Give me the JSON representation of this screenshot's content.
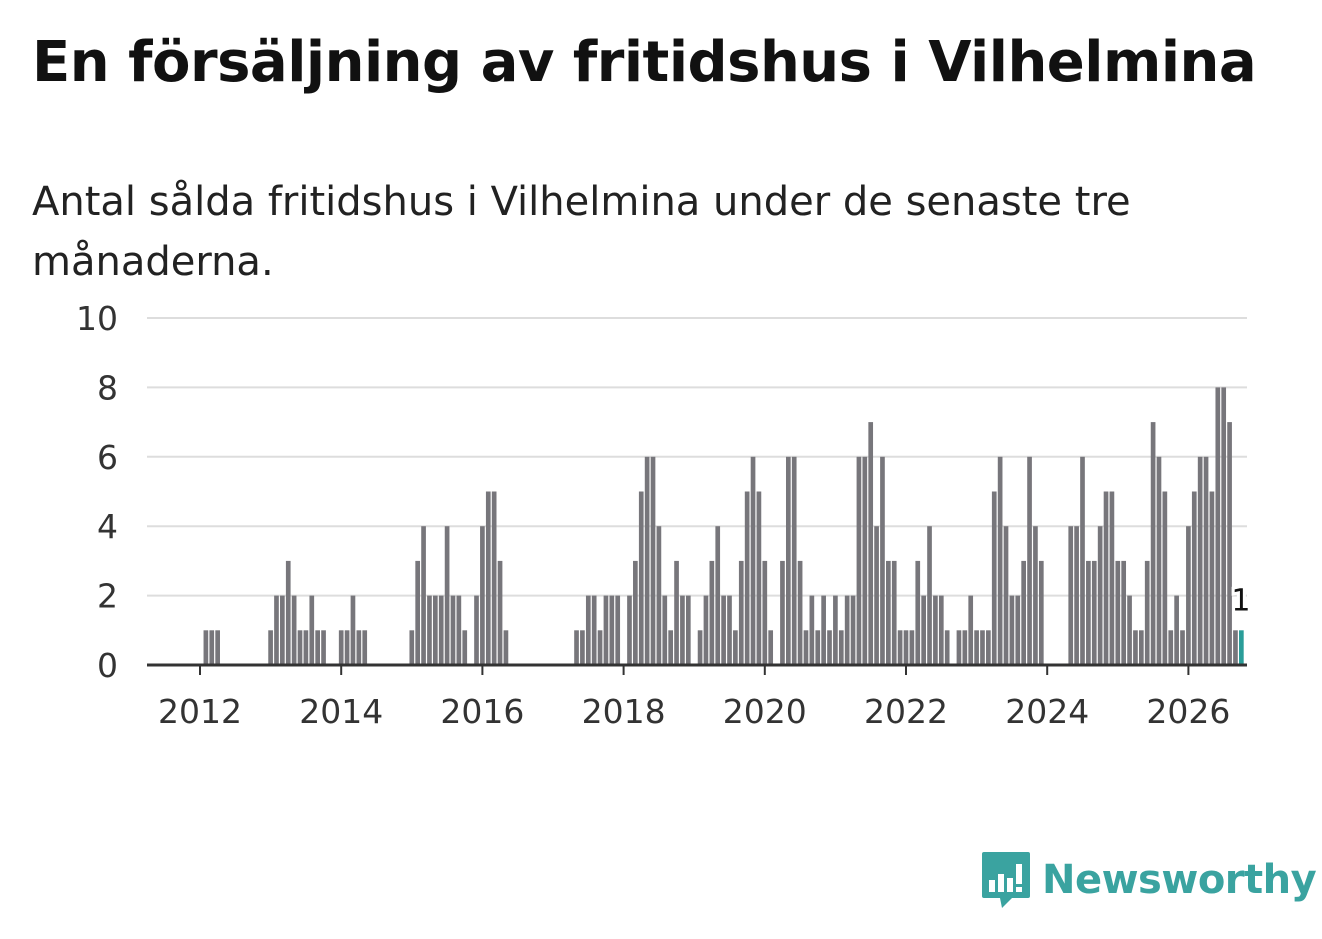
{
  "title": "En försäljning av fritidshus i Vilhelmina",
  "subtitle": "Antal sålda fritidshus i Vilhelmina under de senaste tre månaderna.",
  "brand": {
    "name": "Newsworthy",
    "color": "#3aa3a0"
  },
  "colors": {
    "bar": "#77767b",
    "highlight": "#2a9d99",
    "grid": "#dddddd",
    "axis": "#333333"
  },
  "chart_data": {
    "type": "bar",
    "title": "En försäljning av fritidshus i Vilhelmina",
    "subtitle": "Antal sålda fritidshus i Vilhelmina under de senaste tre månaderna.",
    "xlabel": "",
    "ylabel": "",
    "ylim": [
      0,
      10
    ],
    "yticks": [
      0,
      2,
      4,
      6,
      8,
      10
    ],
    "xticks": [
      2012,
      2014,
      2016,
      2018,
      2020,
      2022,
      2024,
      2026
    ],
    "x_start": 2011.0,
    "x_step": 0.08333333,
    "grid": true,
    "legend": "none",
    "values": [
      0,
      0,
      0,
      0,
      0,
      0,
      0,
      0,
      0,
      0,
      0,
      0,
      0,
      1,
      1,
      1,
      0,
      0,
      0,
      0,
      0,
      0,
      0,
      0,
      1,
      2,
      2,
      3,
      2,
      1,
      1,
      2,
      1,
      1,
      0,
      0,
      1,
      1,
      2,
      1,
      1,
      0,
      0,
      0,
      0,
      0,
      0,
      0,
      1,
      3,
      4,
      2,
      2,
      2,
      4,
      2,
      2,
      1,
      0,
      2,
      4,
      5,
      5,
      3,
      1,
      0,
      0,
      0,
      0,
      0,
      0,
      0,
      0,
      0,
      0,
      0,
      1,
      1,
      2,
      2,
      1,
      2,
      2,
      2,
      0,
      2,
      3,
      5,
      6,
      6,
      4,
      2,
      1,
      3,
      2,
      2,
      0,
      1,
      2,
      3,
      4,
      2,
      2,
      1,
      3,
      5,
      6,
      5,
      3,
      1,
      0,
      3,
      6,
      6,
      3,
      1,
      2,
      1,
      2,
      1,
      2,
      1,
      2,
      2,
      6,
      6,
      7,
      4,
      6,
      3,
      3,
      1,
      1,
      1,
      3,
      2,
      4,
      2,
      2,
      1,
      0,
      1,
      1,
      2,
      1,
      1,
      1,
      5,
      6,
      4,
      2,
      2,
      3,
      6,
      4,
      3,
      0,
      0,
      0,
      0,
      4,
      4,
      6,
      3,
      3,
      4,
      5,
      5,
      3,
      3,
      2,
      1,
      1,
      3,
      7,
      6,
      5,
      1,
      2,
      1,
      4,
      5,
      6,
      6,
      5,
      8,
      8,
      7,
      1,
      1
    ],
    "highlight_last": true,
    "annotation": {
      "label": "1",
      "value": 1
    }
  }
}
